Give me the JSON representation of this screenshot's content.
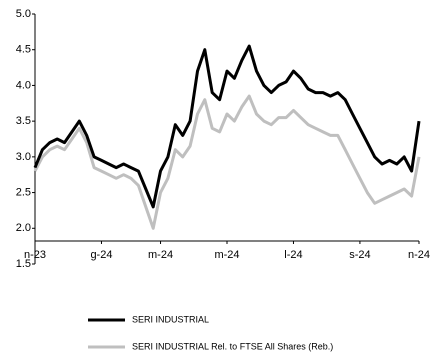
{
  "chart_data": {
    "type": "line",
    "x": [
      0,
      1,
      2,
      3,
      4,
      5,
      6,
      7,
      8,
      9,
      10,
      11,
      12,
      13,
      14,
      15,
      16,
      17,
      18,
      19,
      20,
      21,
      22,
      23,
      24,
      25,
      26,
      27,
      28,
      29,
      30,
      31,
      32,
      33,
      34,
      35,
      36,
      37,
      38,
      39,
      40,
      41,
      42,
      43,
      44,
      45,
      46,
      47,
      48,
      49,
      50,
      51,
      52
    ],
    "series": [
      {
        "name": "SERI INDUSTRIAL",
        "color": "#000000",
        "values": [
          2.85,
          3.1,
          3.2,
          3.25,
          3.2,
          3.35,
          3.5,
          3.3,
          3.0,
          2.95,
          2.9,
          2.85,
          2.9,
          2.85,
          2.8,
          2.55,
          2.3,
          2.8,
          3.0,
          3.45,
          3.3,
          3.5,
          4.2,
          4.5,
          3.9,
          3.8,
          4.2,
          4.1,
          4.35,
          4.55,
          4.2,
          4.0,
          3.9,
          4.0,
          4.05,
          4.2,
          4.1,
          3.95,
          3.9,
          3.9,
          3.85,
          3.9,
          3.8,
          3.6,
          3.4,
          3.2,
          3.0,
          2.9,
          2.95,
          2.9,
          3.0,
          2.8,
          3.5
        ]
      },
      {
        "name": "SERI INDUSTRIAL Rel. to FTSE All Shares (Reb.)",
        "color": "#bfbfbf",
        "values": [
          2.8,
          3.0,
          3.1,
          3.15,
          3.1,
          3.25,
          3.4,
          3.2,
          2.85,
          2.8,
          2.75,
          2.7,
          2.75,
          2.7,
          2.6,
          2.3,
          2.0,
          2.5,
          2.7,
          3.1,
          3.0,
          3.15,
          3.6,
          3.8,
          3.4,
          3.35,
          3.6,
          3.5,
          3.7,
          3.85,
          3.6,
          3.5,
          3.45,
          3.55,
          3.55,
          3.65,
          3.55,
          3.45,
          3.4,
          3.35,
          3.3,
          3.3,
          3.1,
          2.9,
          2.7,
          2.5,
          2.35,
          2.4,
          2.45,
          2.5,
          2.55,
          2.45,
          3.0
        ]
      }
    ],
    "xlim": [
      0,
      52
    ],
    "xticks": [
      {
        "value": 0,
        "label": "n-23"
      },
      {
        "value": 9,
        "label": "g-24"
      },
      {
        "value": 17,
        "label": "m-24"
      },
      {
        "value": 26,
        "label": "m-24"
      },
      {
        "value": 35,
        "label": "l-24"
      },
      {
        "value": 44,
        "label": "s-24"
      },
      {
        "value": 52,
        "label": "n-24"
      }
    ],
    "ylim": [
      1.5,
      5
    ],
    "yticks": [
      {
        "value": 1.5,
        "label": "1.5"
      },
      {
        "value": 2,
        "label": "2.0"
      },
      2.5,
      {
        "value": 3,
        "label": "3.0"
      },
      3.5,
      {
        "value": 4,
        "label": "4.0"
      },
      4.5,
      {
        "value": 5,
        "label": "5.0"
      }
    ],
    "grid": false
  }
}
